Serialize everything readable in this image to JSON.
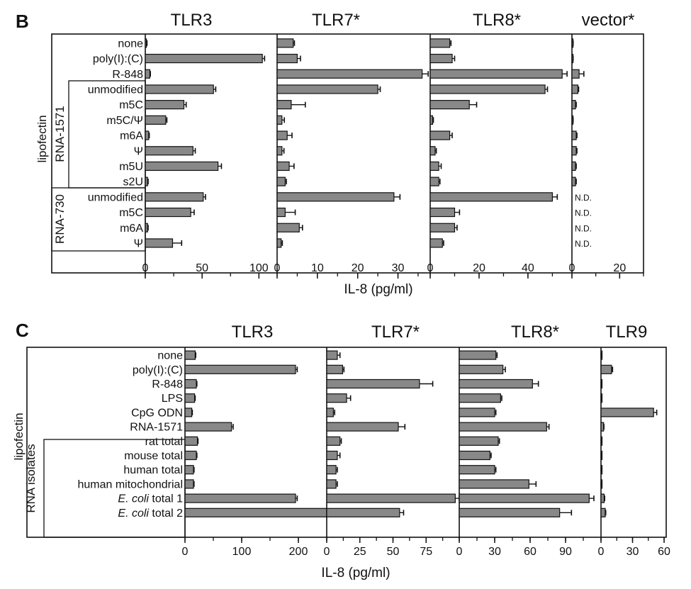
{
  "figure": {
    "panels": [
      {
        "letter": "B",
        "xlabel": "IL-8 (pg/ml)",
        "side_label": "lipofectin",
        "groups": [
          "RNA-1571",
          "RNA-730"
        ],
        "rows": [
          "none",
          "poly(I):(C)",
          "R-848",
          "unmodified",
          "m5C",
          "m5C/Ψ",
          "m6A",
          "Ψ",
          "m5U",
          "s2U",
          "unmodified",
          "m5C",
          "m6A",
          "Ψ"
        ]
      },
      {
        "letter": "C",
        "xlabel": "IL-8 (pg/ml)",
        "side_label": "lipofectin",
        "groups": [
          "RNA isolates"
        ],
        "rows": [
          {
            "pre": "",
            "it": "",
            "post": "none"
          },
          {
            "pre": "",
            "it": "",
            "post": "poly(I):(C)"
          },
          {
            "pre": "",
            "it": "",
            "post": "R-848"
          },
          {
            "pre": "",
            "it": "",
            "post": "LPS"
          },
          {
            "pre": "",
            "it": "",
            "post": "CpG ODN"
          },
          {
            "pre": "",
            "it": "",
            "post": "RNA-1571"
          },
          {
            "pre": "",
            "it": "",
            "post": "rat total"
          },
          {
            "pre": "",
            "it": "",
            "post": "mouse  total"
          },
          {
            "pre": "",
            "it": "",
            "post": "human total"
          },
          {
            "pre": "",
            "it": "",
            "post": "human mitochondrial"
          },
          {
            "pre": "",
            "it": "E. coli",
            "post": " total 1"
          },
          {
            "pre": "",
            "it": "E. coli",
            "post": " total 2"
          }
        ]
      }
    ]
  },
  "chart_data": [
    {
      "type": "bar",
      "panel": "B",
      "orientation": "horizontal",
      "categories": [
        "none",
        "poly(I):(C)",
        "R-848",
        "unmodified",
        "m5C",
        "m5C/Ψ",
        "m6A",
        "Ψ",
        "m5U",
        "s2U",
        "unmodified",
        "m5C",
        "m6A",
        "Ψ"
      ],
      "xlabel": "IL-8 (pg/ml)",
      "bar_color": "#888888",
      "subplots": [
        {
          "title": "TLR3",
          "xlim": [
            0,
            116
          ],
          "ticks": [
            0,
            50,
            100
          ],
          "values": [
            1,
            103,
            4,
            60,
            34,
            18,
            3,
            42,
            64,
            2,
            51,
            40,
            2,
            24
          ],
          "errors": [
            0.5,
            2,
            0.5,
            2,
            2,
            1,
            0.5,
            2,
            3,
            0.5,
            2,
            3,
            0.5,
            8
          ],
          "nd": []
        },
        {
          "title": "TLR7*",
          "xlim": [
            0,
            38
          ],
          "ticks": [
            0,
            10,
            20,
            30
          ],
          "values": [
            4,
            5,
            36,
            25,
            3.5,
            1.2,
            2.5,
            1.2,
            3,
            2,
            29,
            2,
            5.5,
            1
          ],
          "errors": [
            0.3,
            0.8,
            1.5,
            0.6,
            3.5,
            0.6,
            1.2,
            0.5,
            1.2,
            0.3,
            1.5,
            2.5,
            0.8,
            0.3
          ],
          "nd": []
        },
        {
          "title": "TLR8*",
          "xlim": [
            0,
            58
          ],
          "ticks": [
            0,
            20,
            40
          ],
          "values": [
            8,
            9,
            54,
            47,
            16,
            1,
            8,
            2,
            3.5,
            3.5,
            50,
            10,
            10,
            5
          ],
          "errors": [
            0.5,
            1,
            2,
            1,
            3,
            0.3,
            1,
            0.5,
            1,
            0.5,
            2,
            2,
            1,
            0.5
          ],
          "nd": []
        },
        {
          "title": "vector*",
          "xlim": [
            0,
            30
          ],
          "ticks": [
            0,
            20
          ],
          "values": [
            0.3,
            0.3,
            3,
            2.5,
            1.5,
            0.3,
            1.8,
            1.8,
            1.5,
            1.5,
            0,
            0,
            0,
            0
          ],
          "errors": [
            0.2,
            0.2,
            2,
            0.3,
            0.3,
            0.2,
            0.3,
            0.3,
            0.3,
            0.3,
            0,
            0,
            0,
            0
          ],
          "nd": [
            false,
            false,
            false,
            false,
            false,
            false,
            false,
            false,
            false,
            false,
            true,
            true,
            true,
            true
          ],
          "nd_label": "N.D."
        }
      ]
    },
    {
      "type": "bar",
      "panel": "C",
      "orientation": "horizontal",
      "categories": [
        "none",
        "poly(I):(C)",
        "R-848",
        "LPS",
        "CpG ODN",
        "RNA-1571",
        "rat total",
        "mouse  total",
        "human total",
        "human mitochondrial",
        "E. coli total 1",
        "E. coli total 2"
      ],
      "xlabel": "IL-8 (pg/ml)",
      "bar_color": "#888888",
      "subplots": [
        {
          "title": "TLR3",
          "xlim": [
            0,
            250
          ],
          "ticks": [
            0,
            100,
            200
          ],
          "values": [
            18,
            195,
            20,
            17,
            12,
            82,
            22,
            20,
            15,
            15,
            195,
            250
          ],
          "errors": [
            1,
            3,
            1,
            1,
            1,
            3,
            1,
            1,
            1,
            1,
            3,
            3
          ],
          "nd": []
        },
        {
          "title": "TLR7*",
          "xlim": [
            0,
            100
          ],
          "ticks": [
            0,
            25,
            50,
            75
          ],
          "values": [
            8,
            12,
            70,
            15,
            5,
            54,
            10,
            8,
            7,
            7,
            97,
            55
          ],
          "errors": [
            2,
            1,
            10,
            3,
            1,
            5,
            1,
            2,
            1,
            1,
            3,
            3
          ],
          "nd": []
        },
        {
          "title": "TLR8*",
          "xlim": [
            0,
            120
          ],
          "ticks": [
            0,
            30,
            60,
            90
          ],
          "values": [
            31,
            37,
            62,
            35,
            30,
            74,
            33,
            26,
            30,
            59,
            110,
            85
          ],
          "errors": [
            1,
            2,
            5,
            1,
            1,
            2,
            1,
            1,
            1,
            6,
            4,
            10
          ],
          "nd": []
        },
        {
          "title": "TLR9",
          "xlim": [
            0,
            62
          ],
          "ticks": [
            0,
            30,
            60
          ],
          "values": [
            0.5,
            10,
            0.5,
            0.5,
            50,
            2.5,
            0.5,
            0.5,
            0.5,
            0.5,
            3,
            4
          ],
          "errors": [
            0.3,
            1,
            0.3,
            0.3,
            3,
            0.3,
            0.3,
            0.3,
            0.3,
            0.3,
            0.5,
            0.5
          ],
          "nd": []
        }
      ]
    }
  ]
}
